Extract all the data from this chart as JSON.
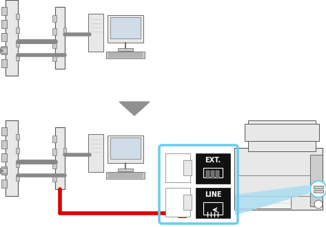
{
  "bg_color": "#ffffff",
  "arrow_color": "#909090",
  "red_color": "#dd0000",
  "gray": "#888888",
  "dark_gray": "#555555",
  "light_gray": "#e8e8e8",
  "mid_gray": "#cccccc",
  "highlight_color": "#66ccee",
  "black": "#111111",
  "white": "#ffffff",
  "blue_fill": "#aaddf0"
}
